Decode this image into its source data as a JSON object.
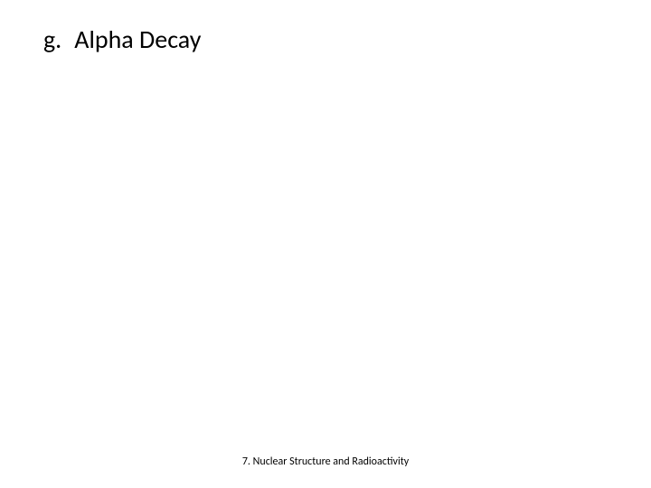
{
  "slide": {
    "heading": {
      "letter": "g.",
      "title": "Alpha Decay"
    },
    "footer": "7. Nuclear Structure and Radioactivity"
  },
  "styles": {
    "background_color": "#ffffff",
    "heading_color": "#000000",
    "heading_fontsize": 28,
    "footer_color": "#000000",
    "footer_fontsize": 12,
    "font_family": "Calibri"
  }
}
